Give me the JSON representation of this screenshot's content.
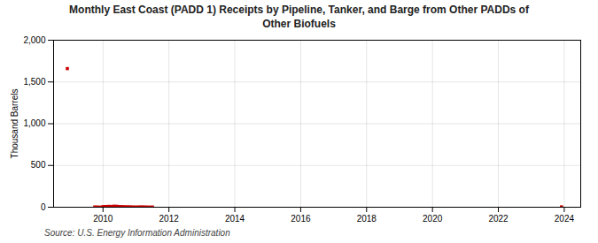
{
  "chart_data": {
    "type": "line",
    "title": "Monthly East Coast (PADD 1) Receipts by Pipeline, Tanker, and Barge from Other PADDs of\nOther Biofuels",
    "y_label": "Thousand Barrels",
    "source": "Source: U.S. Energy Information Administration",
    "x": [
      2008.917,
      null,
      2009.75,
      2009.833,
      2009.917,
      2010.0,
      2010.083,
      2010.167,
      2010.25,
      2010.333,
      2010.417,
      2010.5,
      2010.583,
      2010.667,
      2010.75,
      2010.833,
      2010.917,
      2011.0,
      2011.083,
      2011.167,
      2011.25,
      2011.333,
      2011.417,
      2011.5,
      null,
      2023.917
    ],
    "values": [
      1660,
      null,
      3,
      2,
      1,
      7,
      8,
      10,
      9,
      12,
      11,
      8,
      7,
      6,
      5,
      4,
      3,
      2,
      3,
      4,
      3,
      2,
      1,
      2,
      null,
      4
    ],
    "color": "#cc0000",
    "marker": "square",
    "xlim": [
      2008.5,
      2024.5
    ],
    "xticks": [
      2010,
      2012,
      2014,
      2016,
      2018,
      2020,
      2022,
      2024
    ],
    "ylim": [
      0,
      2000
    ],
    "yticks": [
      0,
      500,
      {
        "value": 1000,
        "label": "1,000"
      },
      {
        "value": 1500,
        "label": "1,500"
      },
      {
        "value": 2000,
        "label": "2,000"
      }
    ],
    "grid": true
  }
}
